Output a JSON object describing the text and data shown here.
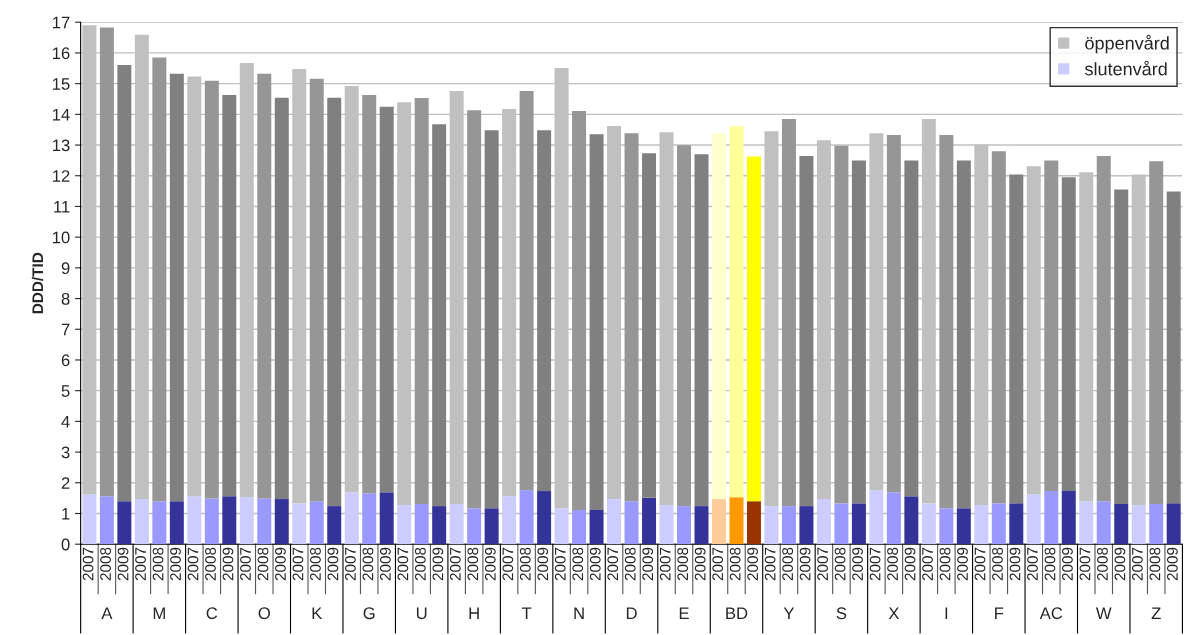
{
  "chart_data": {
    "type": "bar",
    "stacked": true,
    "ylabel": "DDD/TID",
    "categories": [
      "2007",
      "2008",
      "2009",
      "2007",
      "2008",
      "2009",
      "2007",
      "2008",
      "2009",
      "2007",
      "2008",
      "2009",
      "2007",
      "2008",
      "2009",
      "2007",
      "2008",
      "2009",
      "2007",
      "2008",
      "2009",
      "2007",
      "2008",
      "2009",
      "2007",
      "2008",
      "2009",
      "2007",
      "2008",
      "2009",
      "2007",
      "2008",
      "2009",
      "2007",
      "2008",
      "2009",
      "2007",
      "2008",
      "2009",
      "2007",
      "2008",
      "2009",
      "2007",
      "2008",
      "2009",
      "2007",
      "2008",
      "2009",
      "2007",
      "2008",
      "2009",
      "2007",
      "2008",
      "2009",
      "2007",
      "2008",
      "2009",
      "2007",
      "2008",
      "2009",
      "2007",
      "2008",
      "2009"
    ],
    "annotations": [
      "A",
      "M",
      "C",
      "O",
      "K",
      "G",
      "U",
      "H",
      "T",
      "N",
      "D",
      "E",
      "BD",
      "Y",
      "S",
      "X",
      "I",
      "F",
      "AC",
      "W",
      "Z"
    ],
    "series": [
      {
        "name": "slutenvård",
        "color": "#ccccff",
        "values": [
          1.63,
          1.56,
          1.4,
          1.47,
          1.4,
          1.4,
          1.56,
          1.49,
          1.56,
          1.53,
          1.49,
          1.47,
          1.33,
          1.4,
          1.24,
          1.69,
          1.66,
          1.69,
          1.27,
          1.31,
          1.24,
          1.31,
          1.17,
          1.17,
          1.56,
          1.76,
          1.73,
          1.17,
          1.11,
          1.11,
          1.47,
          1.4,
          1.51,
          1.27,
          1.24,
          1.24,
          1.47,
          1.53,
          1.4,
          1.24,
          1.24,
          1.24,
          1.47,
          1.33,
          1.33,
          1.76,
          1.69,
          1.56,
          1.33,
          1.17,
          1.17,
          1.27,
          1.33,
          1.33,
          1.63,
          1.73,
          1.73,
          1.4,
          1.4,
          1.31,
          1.27,
          1.31,
          1.33
        ],
        "colors": [
          "#ccccff",
          "#9999ff",
          "#333399",
          "#ccccff",
          "#9999ff",
          "#333399",
          "#ccccff",
          "#9999ff",
          "#333399",
          "#ccccff",
          "#9999ff",
          "#333399",
          "#ccccff",
          "#9999ff",
          "#333399",
          "#ccccff",
          "#9999ff",
          "#333399",
          "#ccccff",
          "#9999ff",
          "#333399",
          "#ccccff",
          "#9999ff",
          "#333399",
          "#ccccff",
          "#9999ff",
          "#333399",
          "#ccccff",
          "#9999ff",
          "#333399",
          "#ccccff",
          "#9999ff",
          "#333399",
          "#ccccff",
          "#9999ff",
          "#333399",
          "#ffcc99",
          "#ff9900",
          "#993300",
          "#ccccff",
          "#9999ff",
          "#333399",
          "#ccccff",
          "#9999ff",
          "#333399",
          "#ccccff",
          "#9999ff",
          "#333399",
          "#ccccff",
          "#9999ff",
          "#333399",
          "#ccccff",
          "#9999ff",
          "#333399",
          "#ccccff",
          "#9999ff",
          "#333399",
          "#ccccff",
          "#9999ff",
          "#333399",
          "#ccccff",
          "#9999ff",
          "#333399"
        ]
      },
      {
        "name": "öppenvård",
        "color": "#c0c0c0",
        "values": [
          15.27,
          15.27,
          14.21,
          15.12,
          14.45,
          13.92,
          13.67,
          13.6,
          13.07,
          14.14,
          13.83,
          13.07,
          14.15,
          13.76,
          13.3,
          13.23,
          12.97,
          12.56,
          13.12,
          13.22,
          12.44,
          13.45,
          12.96,
          12.31,
          12.61,
          13.0,
          11.75,
          14.34,
          13.0,
          12.24,
          12.15,
          11.98,
          11.22,
          12.15,
          11.75,
          11.46,
          11.91,
          12.08,
          11.23,
          12.21,
          12.61,
          11.4,
          11.69,
          11.65,
          11.17,
          11.62,
          11.64,
          10.94,
          12.52,
          12.16,
          11.33,
          11.75,
          11.47,
          10.71,
          10.68,
          10.77,
          10.22,
          10.71,
          11.24,
          10.24,
          10.77,
          11.16,
          10.16
        ],
        "colors": [
          "#c0c0c0",
          "#969696",
          "#808080",
          "#c0c0c0",
          "#969696",
          "#808080",
          "#c0c0c0",
          "#969696",
          "#808080",
          "#c0c0c0",
          "#969696",
          "#808080",
          "#c0c0c0",
          "#969696",
          "#808080",
          "#c0c0c0",
          "#969696",
          "#808080",
          "#c0c0c0",
          "#969696",
          "#808080",
          "#c0c0c0",
          "#969696",
          "#808080",
          "#c0c0c0",
          "#969696",
          "#808080",
          "#c0c0c0",
          "#969696",
          "#808080",
          "#c0c0c0",
          "#969696",
          "#808080",
          "#c0c0c0",
          "#969696",
          "#808080",
          "#ffffcc",
          "#ffff99",
          "#ffff00",
          "#c0c0c0",
          "#969696",
          "#808080",
          "#c0c0c0",
          "#969696",
          "#808080",
          "#c0c0c0",
          "#969696",
          "#808080",
          "#c0c0c0",
          "#969696",
          "#808080",
          "#c0c0c0",
          "#969696",
          "#808080",
          "#c0c0c0",
          "#969696",
          "#808080",
          "#c0c0c0",
          "#969696",
          "#808080",
          "#c0c0c0",
          "#969696",
          "#808080"
        ]
      }
    ],
    "ylim": [
      0,
      17
    ],
    "yticks": [
      0,
      1,
      2,
      3,
      4,
      5,
      6,
      7,
      8,
      9,
      10,
      11,
      12,
      13,
      14,
      15,
      16,
      17
    ],
    "grid": "y",
    "legend": "top right"
  }
}
